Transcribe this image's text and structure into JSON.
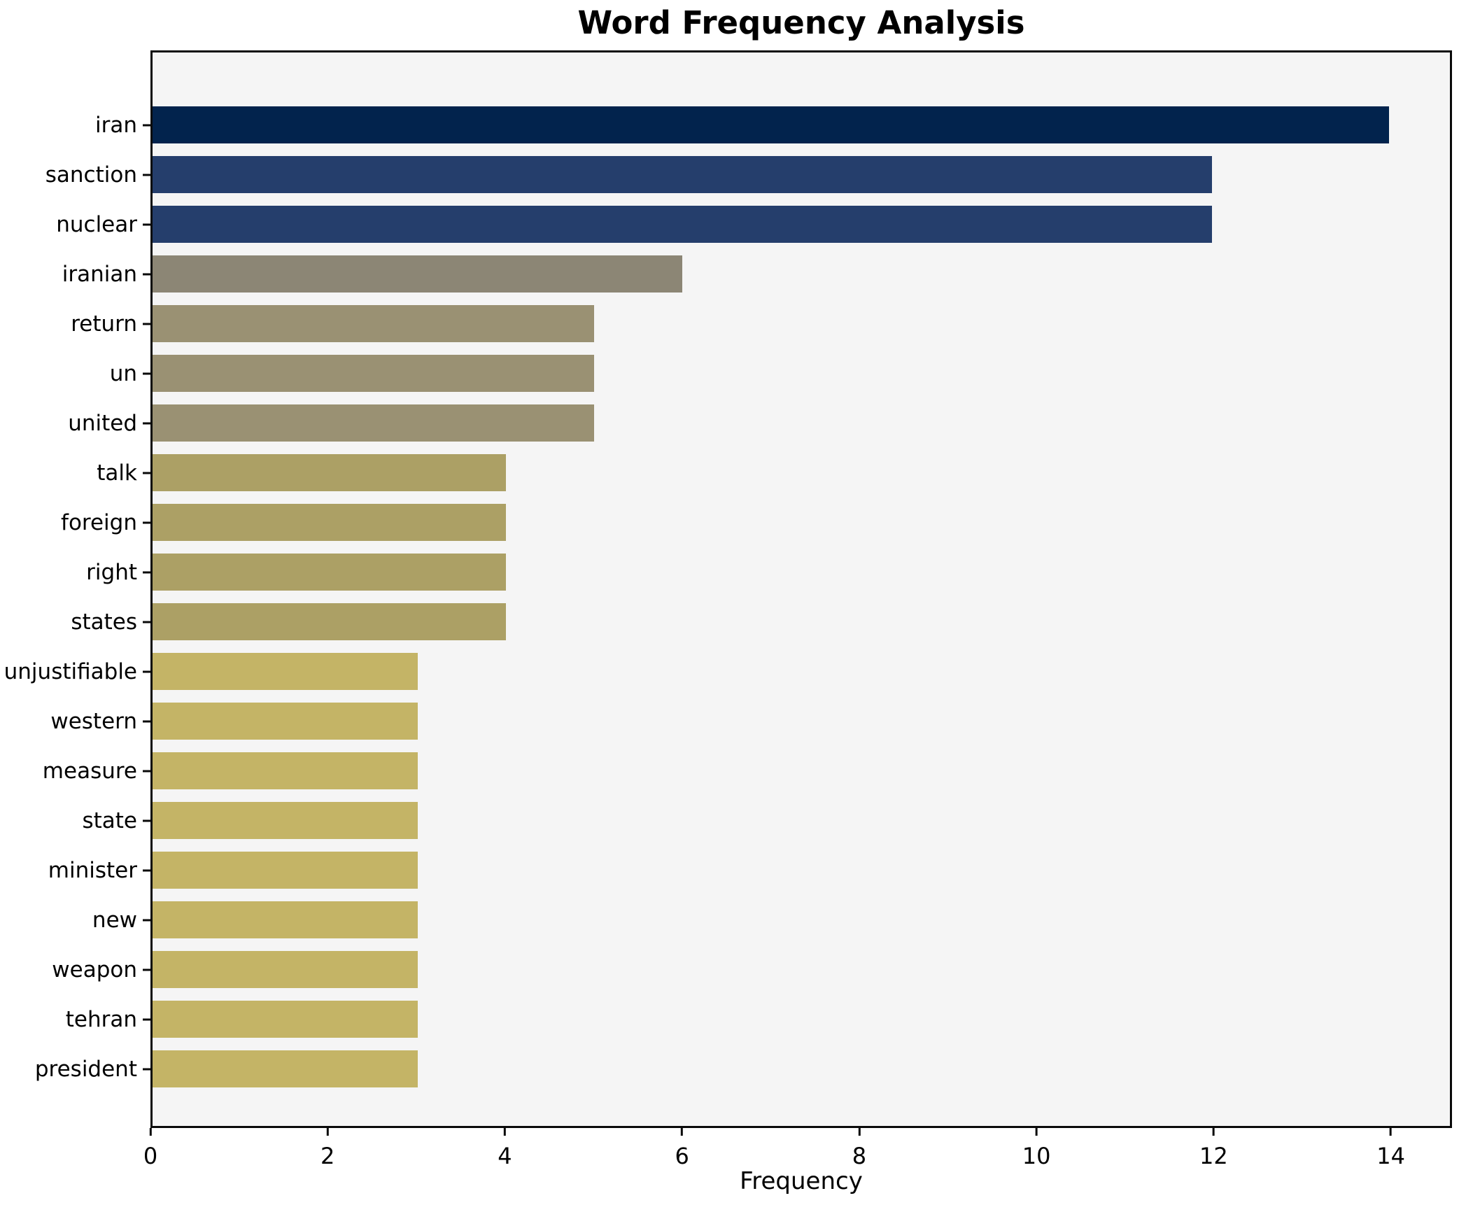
{
  "title": "Word Frequency Analysis",
  "chart_data": {
    "type": "bar",
    "orientation": "horizontal",
    "title": "Word Frequency Analysis",
    "xlabel": "Frequency",
    "ylabel": "",
    "categories": [
      "iran",
      "sanction",
      "nuclear",
      "iranian",
      "return",
      "un",
      "united",
      "talk",
      "foreign",
      "right",
      "states",
      "unjustifiable",
      "western",
      "measure",
      "state",
      "minister",
      "new",
      "weapon",
      "tehran",
      "president"
    ],
    "values": [
      14,
      12,
      12,
      6,
      5,
      5,
      5,
      4,
      4,
      4,
      4,
      3,
      3,
      3,
      3,
      3,
      3,
      3,
      3,
      3
    ],
    "bar_colors": [
      "#02234d",
      "#253e6c",
      "#253e6c",
      "#8c8675",
      "#9a9173",
      "#9a9173",
      "#9a9173",
      "#aca065",
      "#aca065",
      "#aca065",
      "#aca065",
      "#c4b466",
      "#c4b466",
      "#c4b466",
      "#c4b466",
      "#c4b466",
      "#c4b466",
      "#c4b466",
      "#c4b466",
      "#c4b466"
    ],
    "xticks": [
      0,
      2,
      4,
      6,
      8,
      10,
      12,
      14
    ],
    "xlim": [
      0,
      14.69
    ],
    "grid": false,
    "legend": "none",
    "plot_bg": "#f5f5f5",
    "figure_bg": "#ffffff",
    "spine_color": "#0a0a0a",
    "text_color": "#000000"
  }
}
